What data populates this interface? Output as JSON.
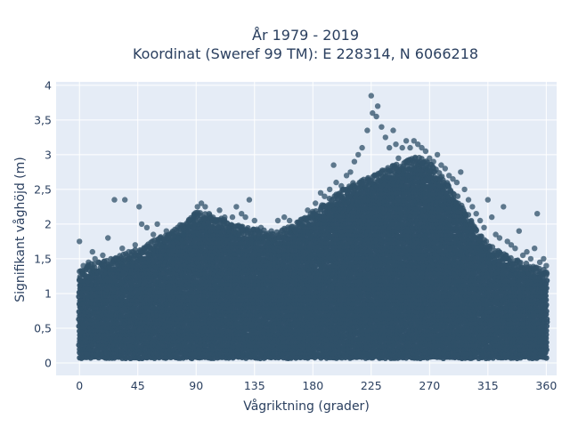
{
  "chart_data": {
    "type": "scatter",
    "title": [
      "År 1979 - 2019",
      "Koordinat (Sweref 99 TM): E 228314, N 6066218"
    ],
    "xlabel": "Vågriktning (grader)",
    "ylabel": "Signifikant våghöjd (m)",
    "xlim": [
      -18,
      368
    ],
    "ylim": [
      -0.18,
      4.05
    ],
    "x_ticks": [
      0,
      45,
      90,
      135,
      180,
      225,
      270,
      315,
      360
    ],
    "x_tick_labels": [
      "0",
      "45",
      "90",
      "135",
      "180",
      "225",
      "270",
      "315",
      "360"
    ],
    "y_ticks": [
      0,
      0.5,
      1,
      1.5,
      2,
      2.5,
      3,
      3.5,
      4
    ],
    "y_tick_labels": [
      "0",
      "0,5",
      "1",
      "1,5",
      "2",
      "2,5",
      "3",
      "3,5",
      "4"
    ],
    "grid": true,
    "marker_color": "#2f5068",
    "plot_bgcolor": "#e5ecf6",
    "envelope": {
      "x": [
        0,
        10,
        20,
        30,
        45,
        60,
        75,
        90,
        100,
        110,
        120,
        135,
        150,
        165,
        180,
        195,
        210,
        225,
        240,
        255,
        262,
        270,
        280,
        290,
        300,
        310,
        320,
        330,
        345,
        360
      ],
      "y_max": [
        1.2,
        1.3,
        1.35,
        1.4,
        1.5,
        1.65,
        1.8,
        2.05,
        2.0,
        1.95,
        1.85,
        1.8,
        1.75,
        1.85,
        2.05,
        2.25,
        2.45,
        2.55,
        2.7,
        2.8,
        2.85,
        2.75,
        2.55,
        2.3,
        2.0,
        1.7,
        1.5,
        1.4,
        1.3,
        1.2
      ]
    },
    "outliers": [
      {
        "x": 0,
        "y": 1.75
      },
      {
        "x": 3,
        "y": 1.4
      },
      {
        "x": 7,
        "y": 1.45
      },
      {
        "x": 10,
        "y": 1.6
      },
      {
        "x": 12,
        "y": 1.5
      },
      {
        "x": 18,
        "y": 1.55
      },
      {
        "x": 22,
        "y": 1.8
      },
      {
        "x": 27,
        "y": 2.35
      },
      {
        "x": 33,
        "y": 1.65
      },
      {
        "x": 35,
        "y": 2.35
      },
      {
        "x": 38,
        "y": 1.6
      },
      {
        "x": 43,
        "y": 1.7
      },
      {
        "x": 46,
        "y": 2.25
      },
      {
        "x": 48,
        "y": 2.0
      },
      {
        "x": 52,
        "y": 1.95
      },
      {
        "x": 57,
        "y": 1.85
      },
      {
        "x": 60,
        "y": 2.0
      },
      {
        "x": 62,
        "y": 1.75
      },
      {
        "x": 67,
        "y": 1.9
      },
      {
        "x": 72,
        "y": 1.8
      },
      {
        "x": 76,
        "y": 1.8
      },
      {
        "x": 80,
        "y": 1.85
      },
      {
        "x": 84,
        "y": 1.95
      },
      {
        "x": 88,
        "y": 2.1
      },
      {
        "x": 91,
        "y": 2.25
      },
      {
        "x": 94,
        "y": 2.3
      },
      {
        "x": 97,
        "y": 2.25
      },
      {
        "x": 100,
        "y": 2.15
      },
      {
        "x": 105,
        "y": 2.05
      },
      {
        "x": 108,
        "y": 2.2
      },
      {
        "x": 112,
        "y": 2.1
      },
      {
        "x": 118,
        "y": 2.1
      },
      {
        "x": 121,
        "y": 2.25
      },
      {
        "x": 125,
        "y": 2.15
      },
      {
        "x": 128,
        "y": 2.1
      },
      {
        "x": 131,
        "y": 2.35
      },
      {
        "x": 135,
        "y": 2.05
      },
      {
        "x": 140,
        "y": 1.95
      },
      {
        "x": 148,
        "y": 1.9
      },
      {
        "x": 153,
        "y": 2.05
      },
      {
        "x": 158,
        "y": 2.1
      },
      {
        "x": 162,
        "y": 2.05
      },
      {
        "x": 167,
        "y": 1.95
      },
      {
        "x": 172,
        "y": 2.0
      },
      {
        "x": 176,
        "y": 2.2
      },
      {
        "x": 182,
        "y": 2.3
      },
      {
        "x": 186,
        "y": 2.45
      },
      {
        "x": 189,
        "y": 2.4
      },
      {
        "x": 193,
        "y": 2.5
      },
      {
        "x": 196,
        "y": 2.85
      },
      {
        "x": 198,
        "y": 2.6
      },
      {
        "x": 202,
        "y": 2.55
      },
      {
        "x": 206,
        "y": 2.7
      },
      {
        "x": 209,
        "y": 2.75
      },
      {
        "x": 212,
        "y": 2.9
      },
      {
        "x": 215,
        "y": 3.0
      },
      {
        "x": 218,
        "y": 3.1
      },
      {
        "x": 222,
        "y": 3.35
      },
      {
        "x": 225,
        "y": 3.85
      },
      {
        "x": 226,
        "y": 3.6
      },
      {
        "x": 229,
        "y": 3.55
      },
      {
        "x": 230,
        "y": 3.7
      },
      {
        "x": 233,
        "y": 3.4
      },
      {
        "x": 236,
        "y": 3.25
      },
      {
        "x": 239,
        "y": 3.1
      },
      {
        "x": 242,
        "y": 3.35
      },
      {
        "x": 244,
        "y": 3.15
      },
      {
        "x": 246,
        "y": 2.95
      },
      {
        "x": 249,
        "y": 3.1
      },
      {
        "x": 252,
        "y": 3.2
      },
      {
        "x": 255,
        "y": 3.1
      },
      {
        "x": 258,
        "y": 3.2
      },
      {
        "x": 261,
        "y": 3.15
      },
      {
        "x": 264,
        "y": 3.1
      },
      {
        "x": 267,
        "y": 3.05
      },
      {
        "x": 270,
        "y": 2.95
      },
      {
        "x": 273,
        "y": 2.9
      },
      {
        "x": 276,
        "y": 3.0
      },
      {
        "x": 279,
        "y": 2.85
      },
      {
        "x": 282,
        "y": 2.8
      },
      {
        "x": 285,
        "y": 2.7
      },
      {
        "x": 288,
        "y": 2.65
      },
      {
        "x": 291,
        "y": 2.6
      },
      {
        "x": 294,
        "y": 2.75
      },
      {
        "x": 297,
        "y": 2.5
      },
      {
        "x": 300,
        "y": 2.35
      },
      {
        "x": 303,
        "y": 2.25
      },
      {
        "x": 306,
        "y": 2.15
      },
      {
        "x": 309,
        "y": 2.05
      },
      {
        "x": 312,
        "y": 1.95
      },
      {
        "x": 315,
        "y": 2.35
      },
      {
        "x": 318,
        "y": 2.1
      },
      {
        "x": 321,
        "y": 1.85
      },
      {
        "x": 324,
        "y": 1.8
      },
      {
        "x": 327,
        "y": 2.25
      },
      {
        "x": 330,
        "y": 1.75
      },
      {
        "x": 333,
        "y": 1.7
      },
      {
        "x": 336,
        "y": 1.65
      },
      {
        "x": 339,
        "y": 1.9
      },
      {
        "x": 342,
        "y": 1.55
      },
      {
        "x": 345,
        "y": 1.6
      },
      {
        "x": 348,
        "y": 1.5
      },
      {
        "x": 351,
        "y": 1.65
      },
      {
        "x": 353,
        "y": 2.15
      },
      {
        "x": 355,
        "y": 1.45
      },
      {
        "x": 358,
        "y": 1.5
      },
      {
        "x": 360,
        "y": 1.4
      }
    ]
  }
}
